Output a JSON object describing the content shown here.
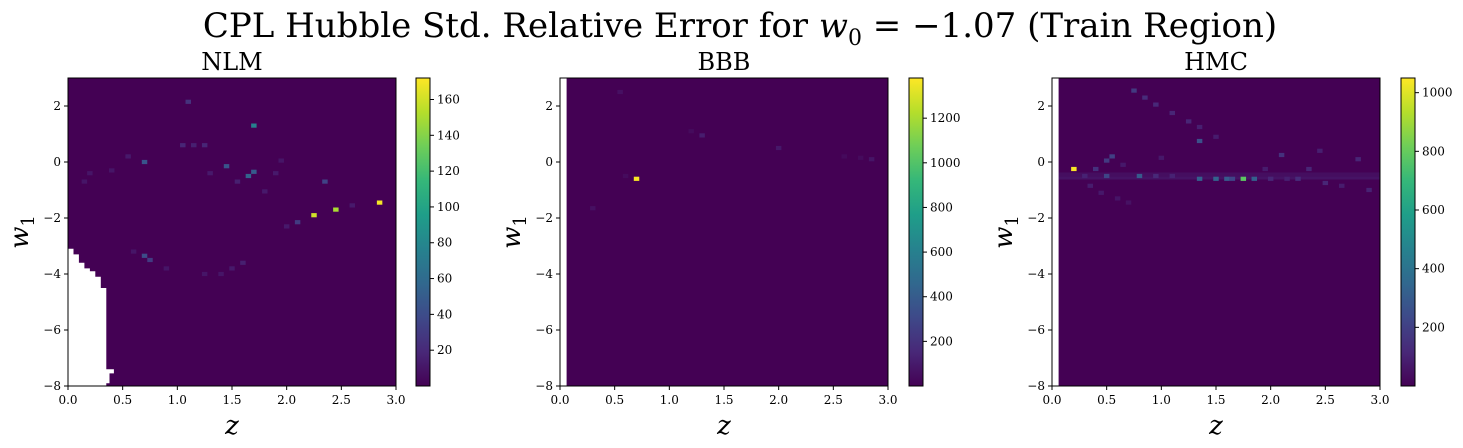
{
  "figure": {
    "title_text": "CPL Hubble Std.  Relative Error for ",
    "title_math_var": "w",
    "title_math_sub": "0",
    "title_math_value": " = −1.07",
    "title_suffix": " (Train Region)"
  },
  "colors": {
    "viridis": [
      "#440154",
      "#482878",
      "#3e4989",
      "#31688e",
      "#26828e",
      "#1f9e89",
      "#35b779",
      "#6ece58",
      "#b5de2b",
      "#fde725"
    ],
    "background": "#440154"
  },
  "chart_data": [
    {
      "type": "heatmap",
      "title": "NLM",
      "xlabel": "z",
      "ylabel_var": "w",
      "ylabel_sub": "1",
      "xlim": [
        0.0,
        3.0
      ],
      "ylim": [
        -8,
        3
      ],
      "xticks": [
        "0.0",
        "0.5",
        "1.0",
        "1.5",
        "2.0",
        "2.5",
        "3.0"
      ],
      "yticks": [
        "2",
        "0",
        "−2",
        "−4",
        "−6",
        "−8"
      ],
      "colorbar": {
        "min": 0,
        "max": 172,
        "ticks": [
          "20",
          "40",
          "60",
          "80",
          "100",
          "120",
          "140",
          "160"
        ],
        "tick_values": [
          20,
          40,
          60,
          80,
          100,
          120,
          140,
          160
        ]
      },
      "missing_region": [
        [
          0.0,
          -3.1
        ],
        [
          0.05,
          -3.1
        ],
        [
          0.05,
          -3.3
        ],
        [
          0.1,
          -3.3
        ],
        [
          0.1,
          -3.6
        ],
        [
          0.15,
          -3.6
        ],
        [
          0.15,
          -3.8
        ],
        [
          0.2,
          -3.8
        ],
        [
          0.2,
          -3.9
        ],
        [
          0.25,
          -3.9
        ],
        [
          0.25,
          -4.1
        ],
        [
          0.3,
          -4.1
        ],
        [
          0.3,
          -4.5
        ],
        [
          0.35,
          -4.5
        ],
        [
          0.35,
          -7.4
        ],
        [
          0.42,
          -7.4
        ],
        [
          0.42,
          -7.55
        ],
        [
          0.38,
          -7.55
        ],
        [
          0.38,
          -7.9
        ],
        [
          0.35,
          -7.9
        ],
        [
          0.35,
          -8.0
        ],
        [
          0.0,
          -8.0
        ]
      ],
      "hot_cells": [
        {
          "z": 1.7,
          "w1": 1.3,
          "v": 75
        },
        {
          "z": 2.25,
          "w1": -1.9,
          "v": 160
        },
        {
          "z": 2.45,
          "w1": -1.7,
          "v": 150
        },
        {
          "z": 2.85,
          "w1": -1.45,
          "v": 170
        },
        {
          "z": 1.65,
          "w1": -0.5,
          "v": 55
        },
        {
          "z": 1.7,
          "w1": -0.35,
          "v": 50
        },
        {
          "z": 1.45,
          "w1": -0.15,
          "v": 45
        },
        {
          "z": 0.7,
          "w1": 0.0,
          "v": 45
        },
        {
          "z": 0.7,
          "w1": -3.35,
          "v": 40
        },
        {
          "z": 0.75,
          "w1": -3.5,
          "v": 30
        },
        {
          "z": 2.35,
          "w1": -0.7,
          "v": 35
        },
        {
          "z": 2.1,
          "w1": -2.15,
          "v": 30
        },
        {
          "z": 1.1,
          "w1": 2.15,
          "v": 25
        },
        {
          "z": 1.05,
          "w1": 0.6,
          "v": 18
        },
        {
          "z": 1.25,
          "w1": 0.6,
          "v": 18
        },
        {
          "z": 1.15,
          "w1": 0.6,
          "v": 15
        },
        {
          "z": 1.55,
          "w1": -0.7,
          "v": 15
        },
        {
          "z": 1.3,
          "w1": -0.4,
          "v": 12
        },
        {
          "z": 0.55,
          "w1": 0.2,
          "v": 12
        },
        {
          "z": 1.9,
          "w1": -0.4,
          "v": 12
        },
        {
          "z": 1.95,
          "w1": 0.05,
          "v": 10
        },
        {
          "z": 2.0,
          "w1": -2.3,
          "v": 12
        },
        {
          "z": 2.6,
          "w1": -1.55,
          "v": 12
        },
        {
          "z": 1.4,
          "w1": -4.0,
          "v": 10
        },
        {
          "z": 1.25,
          "w1": -4.0,
          "v": 10
        },
        {
          "z": 1.5,
          "w1": -3.8,
          "v": 12
        },
        {
          "z": 1.6,
          "w1": -3.6,
          "v": 15
        },
        {
          "z": 0.9,
          "w1": -3.8,
          "v": 10
        },
        {
          "z": 0.6,
          "w1": -3.2,
          "v": 10
        },
        {
          "z": 0.4,
          "w1": -0.3,
          "v": 10
        },
        {
          "z": 0.2,
          "w1": -0.4,
          "v": 10
        },
        {
          "z": 0.15,
          "w1": -0.7,
          "v": 10
        },
        {
          "z": 1.8,
          "w1": -1.05,
          "v": 12
        }
      ]
    },
    {
      "type": "heatmap",
      "title": "BBB",
      "xlabel": "z",
      "ylabel_var": "w",
      "ylabel_sub": "1",
      "xlim": [
        0.0,
        3.0
      ],
      "ylim": [
        -8,
        3
      ],
      "xticks": [
        "0.0",
        "0.5",
        "1.0",
        "1.5",
        "2.0",
        "2.5",
        "3.0"
      ],
      "yticks": [
        "2",
        "0",
        "−2",
        "−4",
        "−6",
        "−8"
      ],
      "colorbar": {
        "min": 0,
        "max": 1380,
        "ticks": [
          "200",
          "400",
          "600",
          "800",
          "1000",
          "1200"
        ],
        "tick_values": [
          200,
          400,
          600,
          800,
          1000,
          1200
        ]
      },
      "missing_region": [
        [
          0.0,
          3.0
        ],
        [
          0.06,
          3.0
        ],
        [
          0.06,
          -8.0
        ],
        [
          0.0,
          -8.0
        ]
      ],
      "hot_cells": [
        {
          "z": 0.7,
          "w1": -0.6,
          "v": 1370
        },
        {
          "z": 1.3,
          "w1": 0.95,
          "v": 110
        },
        {
          "z": 2.0,
          "w1": 0.5,
          "v": 90
        },
        {
          "z": 2.85,
          "w1": 0.1,
          "v": 80
        },
        {
          "z": 0.55,
          "w1": 2.5,
          "v": 60
        },
        {
          "z": 0.3,
          "w1": -1.65,
          "v": 60
        },
        {
          "z": 1.2,
          "w1": 1.1,
          "v": 40
        },
        {
          "z": 2.75,
          "w1": 0.15,
          "v": 40
        },
        {
          "z": 2.6,
          "w1": 0.2,
          "v": 35
        },
        {
          "z": 0.6,
          "w1": -0.5,
          "v": 40
        }
      ]
    },
    {
      "type": "heatmap",
      "title": "HMC",
      "xlabel": "z",
      "ylabel_var": "w",
      "ylabel_sub": "1",
      "xlim": [
        0.0,
        3.0
      ],
      "ylim": [
        -8,
        3
      ],
      "xticks": [
        "0.0",
        "0.5",
        "1.0",
        "1.5",
        "2.0",
        "2.5",
        "3.0"
      ],
      "yticks": [
        "2",
        "0",
        "−2",
        "−4",
        "−6",
        "−8"
      ],
      "colorbar": {
        "min": 0,
        "max": 1050,
        "ticks": [
          "200",
          "400",
          "600",
          "800",
          "1000"
        ],
        "tick_values": [
          200,
          400,
          600,
          800,
          1000
        ]
      },
      "missing_region": [
        [
          0.0,
          3.0
        ],
        [
          0.06,
          3.0
        ],
        [
          0.06,
          -8.0
        ],
        [
          0.0,
          -8.0
        ]
      ],
      "hot_cells": [
        {
          "z": 0.2,
          "w1": -0.25,
          "v": 1040
        },
        {
          "z": 1.75,
          "w1": -0.6,
          "v": 780
        },
        {
          "z": 1.35,
          "w1": -0.6,
          "v": 320
        },
        {
          "z": 1.5,
          "w1": -0.6,
          "v": 330
        },
        {
          "z": 1.6,
          "w1": -0.6,
          "v": 300
        },
        {
          "z": 1.85,
          "w1": -0.6,
          "v": 320
        },
        {
          "z": 1.65,
          "w1": -0.6,
          "v": 220
        },
        {
          "z": 0.8,
          "w1": -0.5,
          "v": 300
        },
        {
          "z": 0.5,
          "w1": -0.5,
          "v": 220
        },
        {
          "z": 1.35,
          "w1": 0.75,
          "v": 260
        },
        {
          "z": 0.55,
          "w1": 0.2,
          "v": 200
        },
        {
          "z": 0.5,
          "w1": 0.05,
          "v": 180
        },
        {
          "z": 0.4,
          "w1": -0.25,
          "v": 150
        },
        {
          "z": 2.1,
          "w1": 0.25,
          "v": 150
        },
        {
          "z": 2.25,
          "w1": -0.6,
          "v": 130
        },
        {
          "z": 2.35,
          "w1": -0.25,
          "v": 110
        },
        {
          "z": 2.5,
          "w1": -0.75,
          "v": 110
        },
        {
          "z": 2.9,
          "w1": -1.0,
          "v": 100
        },
        {
          "z": 2.8,
          "w1": 0.1,
          "v": 110
        },
        {
          "z": 0.75,
          "w1": 2.55,
          "v": 180
        },
        {
          "z": 0.85,
          "w1": 2.3,
          "v": 130
        },
        {
          "z": 0.95,
          "w1": 2.05,
          "v": 120
        },
        {
          "z": 1.1,
          "w1": 1.75,
          "v": 110
        },
        {
          "z": 1.25,
          "w1": 1.45,
          "v": 110
        },
        {
          "z": 1.35,
          "w1": 1.25,
          "v": 90
        },
        {
          "z": 1.5,
          "w1": 0.9,
          "v": 80
        },
        {
          "z": 0.95,
          "w1": -0.5,
          "v": 120
        },
        {
          "z": 1.1,
          "w1": -0.5,
          "v": 100
        },
        {
          "z": 2.0,
          "w1": -0.6,
          "v": 110
        },
        {
          "z": 2.15,
          "w1": -0.6,
          "v": 90
        },
        {
          "z": 2.65,
          "w1": -0.85,
          "v": 80
        },
        {
          "z": 2.45,
          "w1": 0.4,
          "v": 90
        },
        {
          "z": 0.3,
          "w1": -0.5,
          "v": 100
        },
        {
          "z": 0.35,
          "w1": -0.85,
          "v": 80
        },
        {
          "z": 0.45,
          "w1": -1.1,
          "v": 70
        },
        {
          "z": 0.6,
          "w1": -1.3,
          "v": 60
        },
        {
          "z": 0.7,
          "w1": -1.45,
          "v": 50
        },
        {
          "z": 1.95,
          "w1": -0.25,
          "v": 80
        },
        {
          "z": 1.0,
          "w1": 0.15,
          "v": 70
        },
        {
          "z": 0.65,
          "w1": -0.1,
          "v": 70
        }
      ],
      "bands": [
        {
          "w1": -0.55,
          "v": 55
        },
        {
          "w1": -0.45,
          "v": 40
        }
      ]
    }
  ]
}
